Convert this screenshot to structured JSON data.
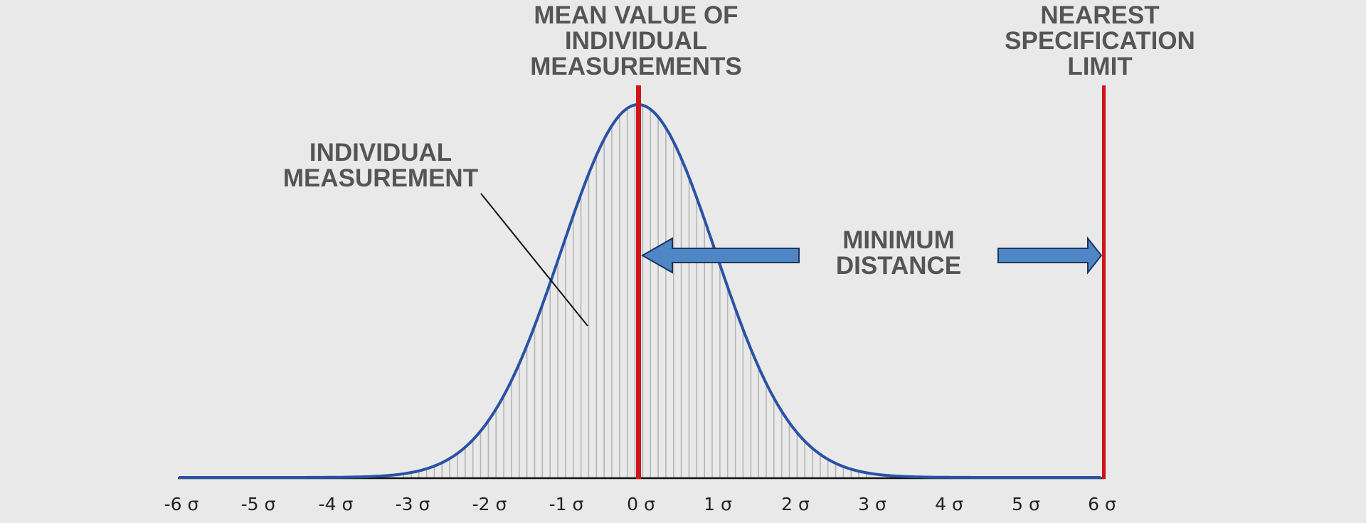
{
  "labels": {
    "mean": [
      "MEAN VALUE OF",
      "INDIVIDUAL",
      "MEASUREMENTS"
    ],
    "spec_limit": [
      "NEAREST",
      "SPECIFICATION",
      "LIMIT"
    ],
    "individual": [
      "INDIVIDUAL",
      "MEASUREMENT"
    ],
    "min_distance": [
      "MINIMUM",
      "DISTANCE"
    ]
  },
  "colors": {
    "background": "#e9e9e9",
    "curve": "#2a52a6",
    "red_line": "#d0141a",
    "arrow_fill": "#4f86c6",
    "arrow_stroke": "#1c3560",
    "hatch": "#b5b5b5",
    "text": "#555555",
    "axis": "#111111"
  },
  "chart_data": {
    "type": "area",
    "title": "",
    "description": "Normal distribution of individual measurements; mean at 0σ, nearest specification limit at 6σ",
    "xlabel": "",
    "ylabel": "",
    "x_ticks": [
      "-6 σ",
      "-5 σ",
      "-4 σ",
      "-3 σ",
      "-2 σ",
      "-1 σ",
      "0 σ",
      "1 σ",
      "2 σ",
      "3 σ",
      "4 σ",
      "5 σ",
      "6 σ"
    ],
    "x_range": [
      -6,
      6
    ],
    "series": [
      {
        "name": "Normal distribution (mean 0, sd 1)",
        "x": [
          -6,
          -5,
          -4,
          -3,
          -2.5,
          -2,
          -1.5,
          -1,
          -0.5,
          0,
          0.5,
          1,
          1.5,
          2,
          2.5,
          3,
          4,
          5,
          6
        ],
        "values": [
          0,
          0,
          0.0001,
          0.0044,
          0.0175,
          0.054,
          0.1295,
          0.242,
          0.352,
          0.399,
          0.352,
          0.242,
          0.1295,
          0.054,
          0.0175,
          0.0044,
          0.0001,
          0,
          0
        ]
      }
    ],
    "vertical_lines": [
      {
        "x": 0,
        "label": "MEAN VALUE OF INDIVIDUAL MEASUREMENTS",
        "color": "#d0141a"
      },
      {
        "x": 6,
        "label": "NEAREST SPECIFICATION LIMIT",
        "color": "#d0141a"
      }
    ],
    "annotations": [
      {
        "text": "INDIVIDUAL MEASUREMENT",
        "points_to": "hatch line near -0.6σ"
      },
      {
        "text": "MINIMUM DISTANCE",
        "spans": [
          0,
          6
        ],
        "type": "double arrow"
      }
    ],
    "grid": false,
    "legend": "none"
  }
}
